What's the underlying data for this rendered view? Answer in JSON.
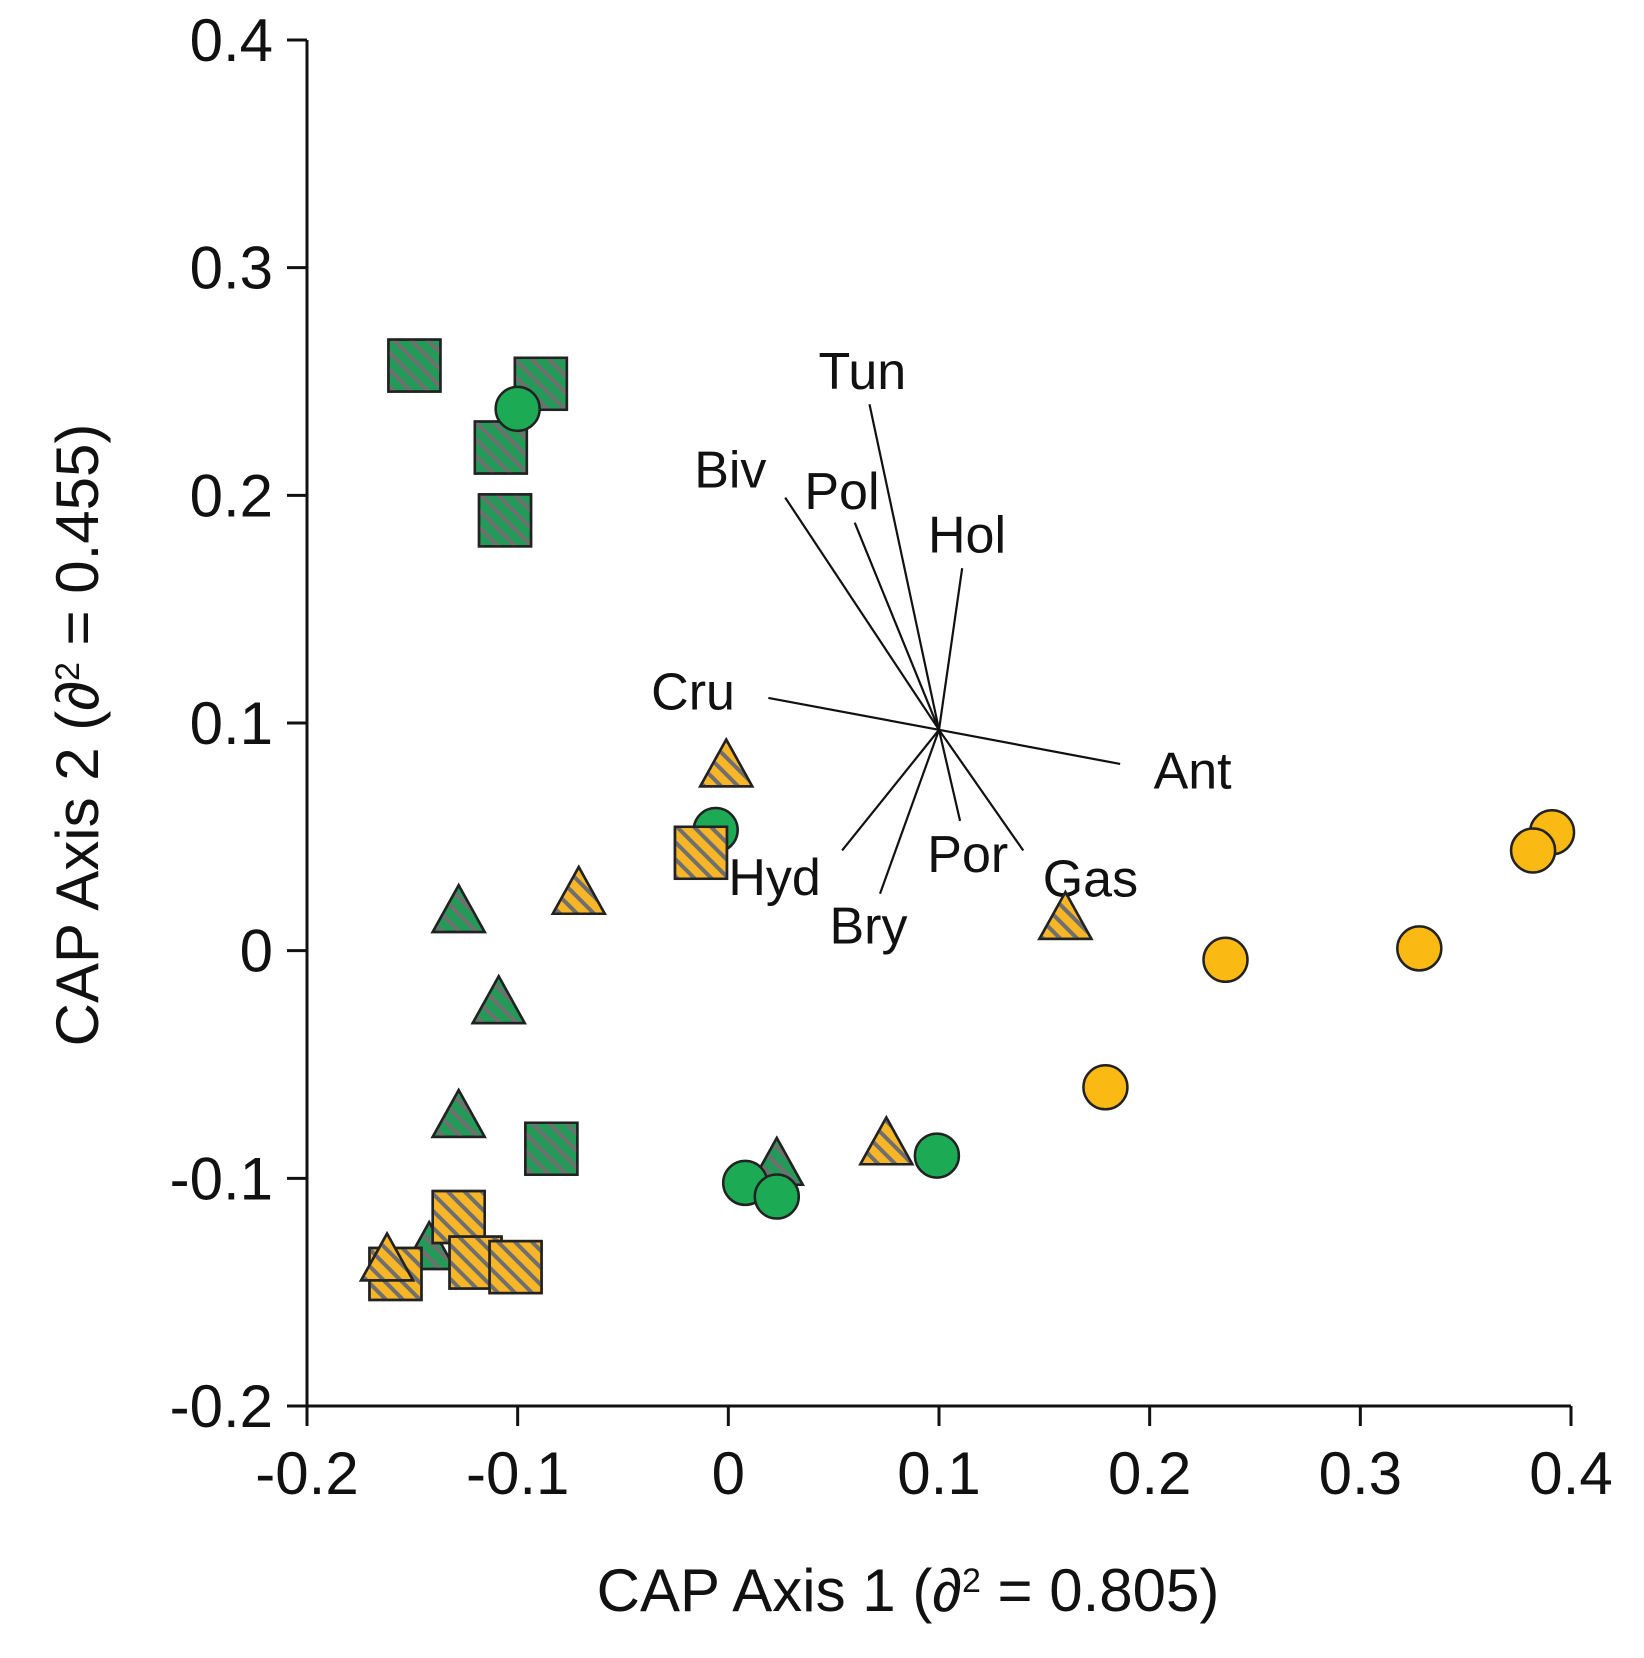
{
  "chart_data": {
    "type": "scatter",
    "title": "",
    "xlabel_prefix": "CAP Axis 1 (",
    "xlabel_symbol": "∂",
    "xlabel_sup": "2",
    "xlabel_suffix": " = 0.805)",
    "ylabel_prefix": "CAP Axis 2 (",
    "ylabel_symbol": "∂",
    "ylabel_sup": "2",
    "ylabel_suffix": " = 0.455)",
    "xlim": [
      -0.2,
      0.4
    ],
    "ylim": [
      -0.2,
      0.4
    ],
    "xticks": [
      -0.2,
      -0.1,
      0,
      0.1,
      0.2,
      0.3,
      0.4
    ],
    "yticks": [
      -0.2,
      -0.1,
      0,
      0.1,
      0.2,
      0.3,
      0.4
    ],
    "xtick_labels": [
      "-0.2",
      "-0.1",
      "0",
      "0.1",
      "0.2",
      "0.3",
      "0.4"
    ],
    "ytick_labels": [
      "-0.2",
      "-0.1",
      "0",
      "0.1",
      "0.2",
      "0.3",
      "0.4"
    ],
    "colors": {
      "green": "#1daa55",
      "green_hatched": "#239a57",
      "yellow": "#fbb913",
      "yellow_hatched": "#f7b528",
      "stripe": "#6f6f6f"
    },
    "series": [
      {
        "name": "green-square-hatched",
        "shape": "square",
        "color": "green_hatched",
        "hatched": true,
        "x": [
          -0.149,
          -0.089,
          -0.108,
          -0.106,
          -0.084
        ],
        "y": [
          0.257,
          0.249,
          0.221,
          0.189,
          -0.087
        ]
      },
      {
        "name": "green-triangle-hatched",
        "shape": "triangle",
        "color": "green_hatched",
        "hatched": true,
        "x": [
          -0.128,
          -0.109,
          -0.128,
          -0.142,
          0.023
        ],
        "y": [
          0.016,
          -0.024,
          -0.074,
          -0.132,
          -0.095
        ]
      },
      {
        "name": "green-circle",
        "shape": "circle",
        "color": "green",
        "hatched": false,
        "x": [
          -0.1,
          -0.006,
          0.008,
          0.023,
          0.099
        ],
        "y": [
          0.238,
          0.053,
          -0.102,
          -0.108,
          -0.09
        ]
      },
      {
        "name": "yellow-square-hatched",
        "shape": "square",
        "color": "yellow_hatched",
        "hatched": true,
        "x": [
          -0.013,
          -0.128,
          -0.158,
          -0.12,
          -0.101
        ],
        "y": [
          0.043,
          -0.117,
          -0.142,
          -0.137,
          -0.139
        ]
      },
      {
        "name": "yellow-triangle-hatched",
        "shape": "triangle",
        "color": "yellow_hatched",
        "hatched": true,
        "x": [
          -0.001,
          -0.071,
          0.16,
          0.075,
          -0.162
        ],
        "y": [
          0.08,
          0.024,
          0.013,
          -0.086,
          -0.137
        ]
      },
      {
        "name": "yellow-circle",
        "shape": "circle",
        "color": "yellow",
        "hatched": false,
        "x": [
          0.391,
          0.382,
          0.328,
          0.236,
          0.179
        ],
        "y": [
          0.052,
          0.044,
          0.001,
          -0.004,
          -0.06
        ]
      }
    ],
    "vector_origin": [
      0.1,
      0.097
    ],
    "vectors": [
      {
        "label": "Tun",
        "x": 0.067,
        "y": 0.24
      },
      {
        "label": "Biv",
        "x": 0.027,
        "y": 0.199
      },
      {
        "label": "Pol",
        "x": 0.06,
        "y": 0.188
      },
      {
        "label": "Hol",
        "x": 0.111,
        "y": 0.168
      },
      {
        "label": "Cru",
        "x": 0.019,
        "y": 0.111
      },
      {
        "label": "Ant",
        "x": 0.186,
        "y": 0.082
      },
      {
        "label": "Hyd",
        "x": 0.054,
        "y": 0.044
      },
      {
        "label": "Por",
        "x": 0.11,
        "y": 0.057
      },
      {
        "label": "Gas",
        "x": 0.14,
        "y": 0.044
      },
      {
        "label": "Bry",
        "x": 0.072,
        "y": 0.025
      }
    ]
  }
}
